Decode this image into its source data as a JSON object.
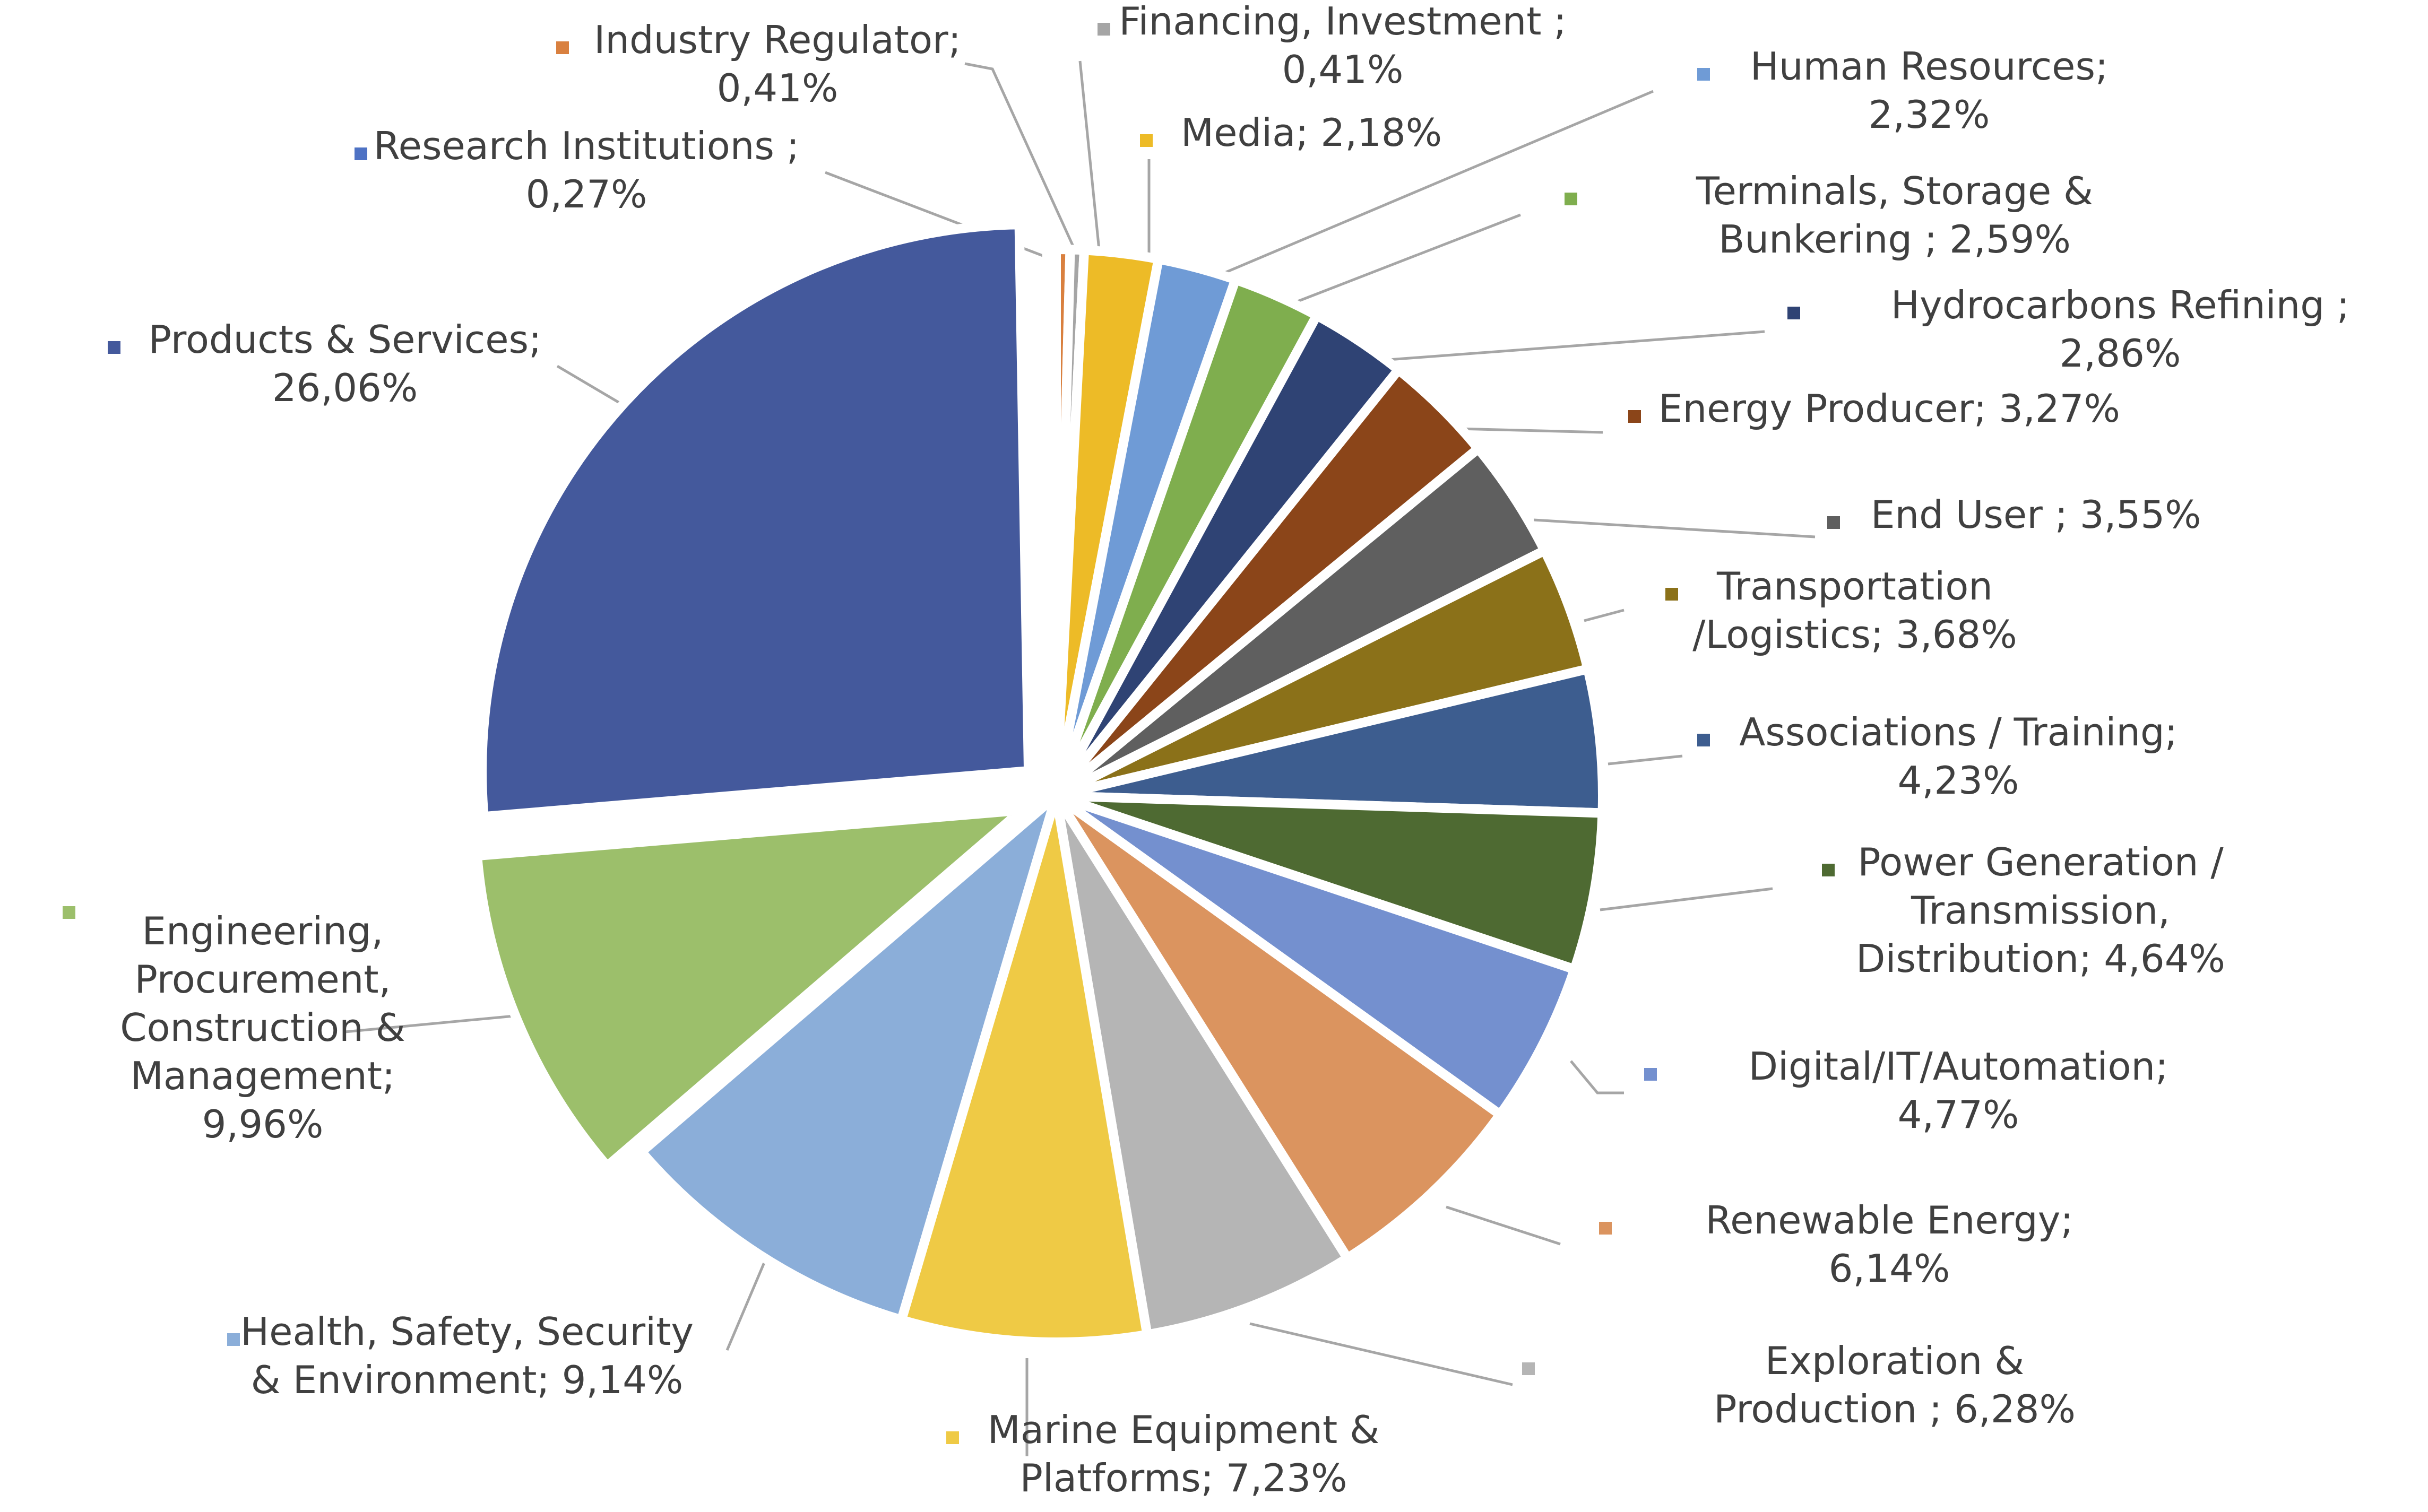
{
  "chart_data": {
    "type": "pie",
    "start_angle_deg": 0,
    "direction": "clockwise",
    "slices": [
      {
        "label": "Industry Regulator;",
        "value_label": "0,41%",
        "value": 0.41,
        "color": "#D9803F"
      },
      {
        "label": "Financing, Investment ;",
        "value_label": "0,41%",
        "value": 0.41,
        "color": "#A5A5A5"
      },
      {
        "label": "Media; 2,18%",
        "value_label": "",
        "value": 2.18,
        "color": "#EDBB27"
      },
      {
        "label": "Human Resources;",
        "value_label": "2,32%",
        "value": 2.32,
        "color": "#6F9BD6"
      },
      {
        "label": "Terminals, Storage &",
        "value_label": "Bunkering ; 2,59%",
        "value": 2.59,
        "color": "#7FAE4E"
      },
      {
        "label": "Hydrocarbons Refining ;",
        "value_label": "2,86%",
        "value": 2.86,
        "color": "#2F4374"
      },
      {
        "label": "Energy Producer; 3,27%",
        "value_label": "",
        "value": 3.27,
        "color": "#8B4519"
      },
      {
        "label": "End User ; 3,55%",
        "value_label": "",
        "value": 3.55,
        "color": "#5F5F5F"
      },
      {
        "label": "Transportation",
        "value_label": "/Logistics; 3,68%",
        "value": 3.68,
        "color": "#8B7119"
      },
      {
        "label": "Associations / Training;",
        "value_label": "4,23%",
        "value": 4.23,
        "color": "#3D5D8F"
      },
      {
        "label": "Power Generation /",
        "label2": "Transmission,",
        "value_label": "Distribution; 4,64%",
        "value": 4.64,
        "color": "#4E6A32"
      },
      {
        "label": "Digital/IT/Automation;",
        "value_label": "4,77%",
        "value": 4.77,
        "color": "#7490CF"
      },
      {
        "label": "Renewable Energy;",
        "value_label": "6,14%",
        "value": 6.14,
        "color": "#DB945F"
      },
      {
        "label": "Exploration &",
        "value_label": "Production ; 6,28%",
        "value": 6.28,
        "color": "#B5B5B5"
      },
      {
        "label": "Marine Equipment &",
        "value_label": "Platforms; 7,23%",
        "value": 7.23,
        "color": "#EFCA45"
      },
      {
        "label": "Health, Safety, Security",
        "value_label": "& Environment; 9,14%",
        "value": 9.14,
        "color": "#8BAED9"
      },
      {
        "label": "Engineering,",
        "label2": "Procurement,",
        "label3": "Construction &",
        "label4": "Management;",
        "value_label": "9,96%",
        "value": 9.96,
        "color": "#9CBF6B"
      },
      {
        "label": "Products & Services;",
        "value_label": "26,06%",
        "value": 26.06,
        "color": "#44599C"
      },
      {
        "label": "Research Institutions ;",
        "value_label": "0,27%",
        "value": 0.27,
        "color": "#4E72C4"
      }
    ]
  }
}
